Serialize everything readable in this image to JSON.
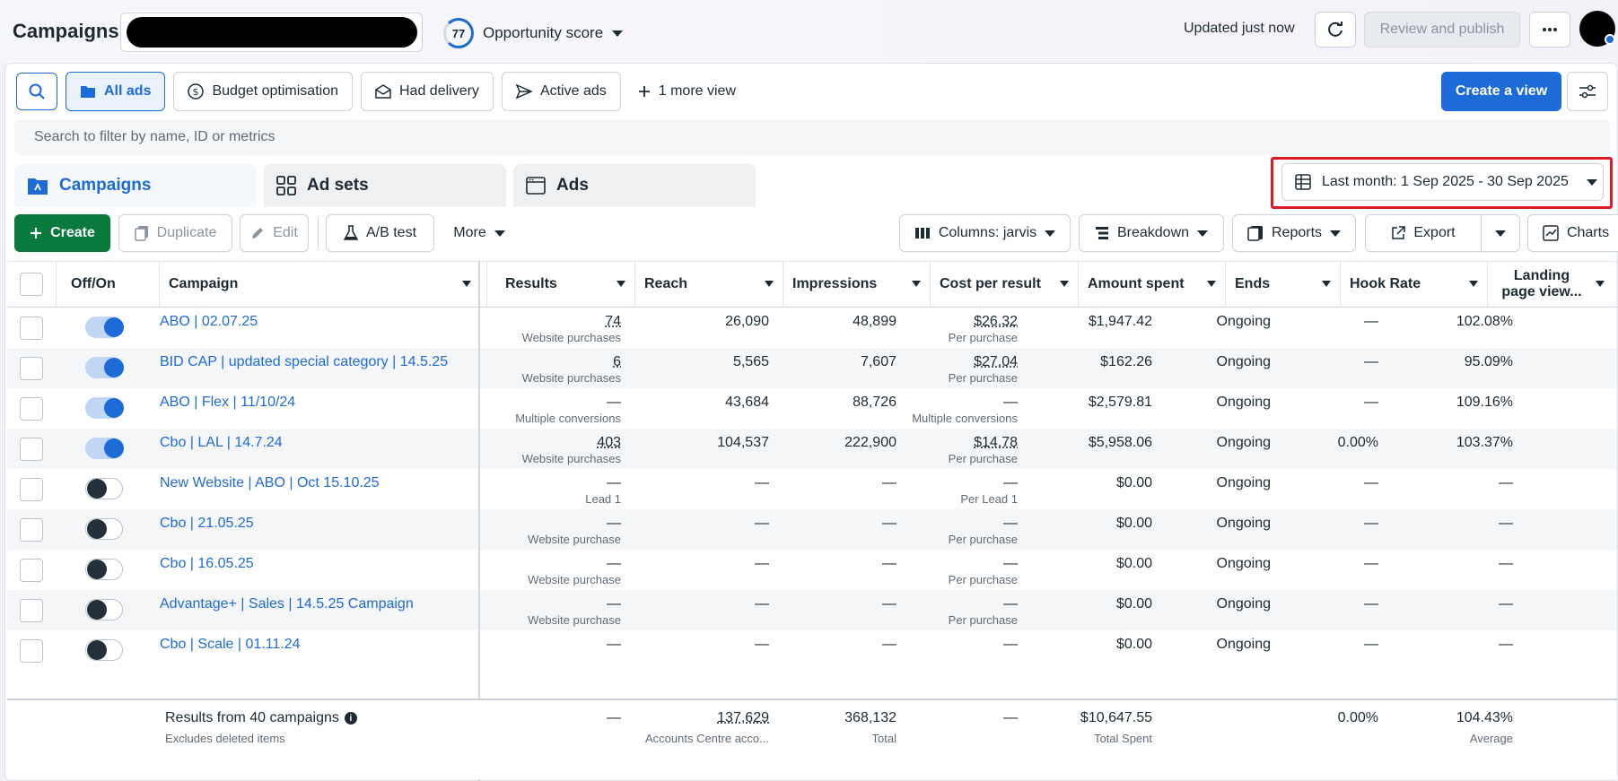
{
  "header": {
    "title": "Campaigns",
    "opportunity_score": "77",
    "opportunity_label": "Opportunity score",
    "updated": "Updated just now",
    "review_publish": "Review and publish"
  },
  "views": {
    "items": [
      "All ads",
      "Budget optimisation",
      "Had delivery",
      "Active ads"
    ],
    "more_view": "1 more view",
    "create_view": "Create a view"
  },
  "search": {
    "placeholder": "Search to filter by name, ID or metrics"
  },
  "tabs": [
    "Campaigns",
    "Ad sets",
    "Ads"
  ],
  "date_range": "Last month: 1 Sep 2025 - 30 Sep 2025",
  "toolbar": {
    "create": "Create",
    "duplicate": "Duplicate",
    "edit": "Edit",
    "ab_test": "A/B test",
    "more": "More",
    "columns": "Columns: jarvis",
    "breakdown": "Breakdown",
    "reports": "Reports",
    "export": "Export",
    "charts": "Charts"
  },
  "table": {
    "columns": [
      "Off/On",
      "Campaign",
      "Results",
      "Reach",
      "Impressions",
      "Cost per result",
      "Amount spent",
      "Ends",
      "Hook Rate",
      "Landing page view..."
    ],
    "landing_line1": "Landing",
    "landing_line2": "page view...",
    "rows": [
      {
        "on": true,
        "name": "ABO | 02.07.25",
        "results": "74",
        "results_sub": "Website purchases",
        "reach": "26,090",
        "impressions": "48,899",
        "cpr": "$26.32",
        "cpr_sub": "Per purchase",
        "spent": "$1,947.42",
        "ends": "Ongoing",
        "hook": "—",
        "landing": "102.08%"
      },
      {
        "on": true,
        "name": "BID CAP | updated special category | 14.5.25",
        "results": "6",
        "results_sub": "Website purchases",
        "reach": "5,565",
        "impressions": "7,607",
        "cpr": "$27.04",
        "cpr_sub": "Per purchase",
        "spent": "$162.26",
        "ends": "Ongoing",
        "hook": "—",
        "landing": "95.09%"
      },
      {
        "on": true,
        "name": "ABO | Flex | 11/10/24",
        "results": "—",
        "results_sub": "Multiple conversions",
        "reach": "43,684",
        "impressions": "88,726",
        "cpr": "—",
        "cpr_sub": "Multiple conversions",
        "spent": "$2,579.81",
        "ends": "Ongoing",
        "hook": "—",
        "landing": "109.16%"
      },
      {
        "on": true,
        "name": "Cbo | LAL | 14.7.24",
        "results": "403",
        "results_sub": "Website purchases",
        "reach": "104,537",
        "impressions": "222,900",
        "cpr": "$14.78",
        "cpr_sub": "Per purchase",
        "spent": "$5,958.06",
        "ends": "Ongoing",
        "hook": "0.00%",
        "landing": "103.37%"
      },
      {
        "on": false,
        "name": "New Website | ABO | Oct 15.10.25",
        "results": "—",
        "results_sub": "Lead 1",
        "reach": "—",
        "impressions": "—",
        "cpr": "—",
        "cpr_sub": "Per Lead 1",
        "spent": "$0.00",
        "ends": "Ongoing",
        "hook": "—",
        "landing": "—"
      },
      {
        "on": false,
        "name": "Cbo | 21.05.25",
        "results": "—",
        "results_sub": "Website purchase",
        "reach": "—",
        "impressions": "—",
        "cpr": "—",
        "cpr_sub": "Per purchase",
        "spent": "$0.00",
        "ends": "Ongoing",
        "hook": "—",
        "landing": "—"
      },
      {
        "on": false,
        "name": "Cbo | 16.05.25",
        "results": "—",
        "results_sub": "Website purchase",
        "reach": "—",
        "impressions": "—",
        "cpr": "—",
        "cpr_sub": "Per purchase",
        "spent": "$0.00",
        "ends": "Ongoing",
        "hook": "—",
        "landing": "—"
      },
      {
        "on": false,
        "name": "Advantage+ | Sales | 14.5.25 Campaign",
        "results": "—",
        "results_sub": "Website purchase",
        "reach": "—",
        "impressions": "—",
        "cpr": "—",
        "cpr_sub": "Per purchase",
        "spent": "$0.00",
        "ends": "Ongoing",
        "hook": "—",
        "landing": "—"
      },
      {
        "on": false,
        "name": "Cbo | Scale | 01.11.24",
        "results": "—",
        "results_sub": "",
        "reach": "—",
        "impressions": "—",
        "cpr": "—",
        "cpr_sub": "",
        "spent": "$0.00",
        "ends": "Ongoing",
        "hook": "—",
        "landing": "—"
      }
    ]
  },
  "footer": {
    "title": "Results from 40 campaigns",
    "sub": "Excludes deleted items",
    "results": "—",
    "reach": "137,629",
    "reach_sub": "Accounts Centre acco...",
    "impressions": "368,132",
    "impressions_sub": "Total",
    "cpr": "—",
    "spent": "$10,647.55",
    "spent_sub": "Total Spent",
    "hook": "0.00%",
    "landing": "104.43%",
    "landing_sub": "Average"
  },
  "colors": {
    "accent": "#1d6bd6",
    "create_green": "#0a7a3c",
    "highlight_red": "#e01b24"
  }
}
